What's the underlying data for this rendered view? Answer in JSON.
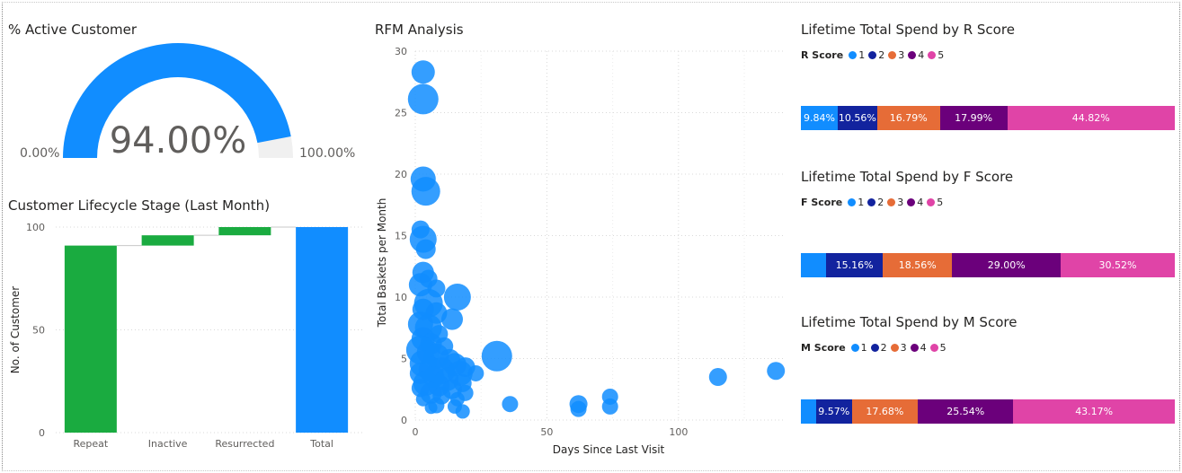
{
  "colors": {
    "blue": "#118DFF",
    "navy": "#12239E",
    "orange": "#E66C37",
    "purple": "#6B007B",
    "pink": "#E044A7",
    "green": "#1AAB40",
    "gauge_track": "#F0F0F0"
  },
  "gauge": {
    "title": "% Active Customer",
    "value_label": "94.00%",
    "min_label": "0.00%",
    "max_label": "100.00%",
    "value": 0.94
  },
  "chart_data": [
    {
      "type": "bar",
      "subtype": "waterfall",
      "title": "Customer Lifecycle Stage (Last Month)",
      "ylabel": "No. of Customer",
      "xlabel": "",
      "ylim": [
        0,
        100
      ],
      "yticks": [
        0,
        50,
        100
      ],
      "categories": [
        "Repeat",
        "Inactive",
        "Resurrected",
        "Total"
      ],
      "start": [
        0,
        91,
        96,
        0
      ],
      "end": [
        91,
        96,
        100,
        100
      ],
      "colors": [
        "#1AAB40",
        "#1AAB40",
        "#1AAB40",
        "#118DFF"
      ]
    },
    {
      "type": "scatter",
      "subtype": "bubble",
      "title": "RFM Analysis",
      "xlabel": "Days Since Last Visit",
      "ylabel": "Total Baskets per Month",
      "xlim": [
        0,
        140
      ],
      "ylim": [
        0,
        30
      ],
      "xticks": [
        0,
        50,
        100
      ],
      "yticks": [
        0,
        5,
        10,
        15,
        20,
        25,
        30
      ],
      "grid": true,
      "points": [
        {
          "x": 3,
          "y": 28.3,
          "r": 13
        },
        {
          "x": 3,
          "y": 26.1,
          "r": 17
        },
        {
          "x": 3,
          "y": 19.6,
          "r": 14
        },
        {
          "x": 4,
          "y": 18.6,
          "r": 16
        },
        {
          "x": 2,
          "y": 15.5,
          "r": 10
        },
        {
          "x": 3,
          "y": 14.7,
          "r": 15
        },
        {
          "x": 4,
          "y": 13.9,
          "r": 11
        },
        {
          "x": 3,
          "y": 12.0,
          "r": 12
        },
        {
          "x": 5,
          "y": 11.5,
          "r": 10
        },
        {
          "x": 2,
          "y": 11.0,
          "r": 13
        },
        {
          "x": 8,
          "y": 10.7,
          "r": 10
        },
        {
          "x": 16,
          "y": 10.0,
          "r": 15
        },
        {
          "x": 5,
          "y": 9.5,
          "r": 16
        },
        {
          "x": 3,
          "y": 9.0,
          "r": 12
        },
        {
          "x": 8,
          "y": 8.7,
          "r": 12
        },
        {
          "x": 14,
          "y": 8.2,
          "r": 12
        },
        {
          "x": 2,
          "y": 7.8,
          "r": 14
        },
        {
          "x": 5,
          "y": 7.5,
          "r": 15
        },
        {
          "x": 9,
          "y": 7.0,
          "r": 10
        },
        {
          "x": 3,
          "y": 6.6,
          "r": 13
        },
        {
          "x": 6,
          "y": 6.2,
          "r": 12
        },
        {
          "x": 11,
          "y": 6.0,
          "r": 10
        },
        {
          "x": 2,
          "y": 5.7,
          "r": 16
        },
        {
          "x": 5,
          "y": 5.5,
          "r": 13
        },
        {
          "x": 8,
          "y": 5.2,
          "r": 14
        },
        {
          "x": 31,
          "y": 5.2,
          "r": 17
        },
        {
          "x": 13,
          "y": 4.9,
          "r": 12
        },
        {
          "x": 3,
          "y": 4.6,
          "r": 15
        },
        {
          "x": 15,
          "y": 4.5,
          "r": 13
        },
        {
          "x": 19,
          "y": 4.3,
          "r": 11
        },
        {
          "x": 6,
          "y": 4.1,
          "r": 14
        },
        {
          "x": 10,
          "y": 4.0,
          "r": 15
        },
        {
          "x": 2,
          "y": 3.8,
          "r": 12
        },
        {
          "x": 17,
          "y": 3.8,
          "r": 14
        },
        {
          "x": 23,
          "y": 3.8,
          "r": 9
        },
        {
          "x": 7,
          "y": 3.5,
          "r": 12
        },
        {
          "x": 12,
          "y": 3.3,
          "r": 13
        },
        {
          "x": 4,
          "y": 3.0,
          "r": 14
        },
        {
          "x": 18,
          "y": 3.0,
          "r": 10
        },
        {
          "x": 9,
          "y": 2.8,
          "r": 12
        },
        {
          "x": 2,
          "y": 2.6,
          "r": 10
        },
        {
          "x": 14,
          "y": 2.5,
          "r": 11
        },
        {
          "x": 6,
          "y": 2.2,
          "r": 12
        },
        {
          "x": 19,
          "y": 2.2,
          "r": 9
        },
        {
          "x": 10,
          "y": 2.0,
          "r": 10
        },
        {
          "x": 3,
          "y": 1.7,
          "r": 8
        },
        {
          "x": 16,
          "y": 1.7,
          "r": 8
        },
        {
          "x": 8,
          "y": 1.2,
          "r": 9
        },
        {
          "x": 15,
          "y": 1.1,
          "r": 8
        },
        {
          "x": 6,
          "y": 1.0,
          "r": 7
        },
        {
          "x": 18,
          "y": 0.7,
          "r": 8
        },
        {
          "x": 36,
          "y": 1.3,
          "r": 9
        },
        {
          "x": 62,
          "y": 1.3,
          "r": 10
        },
        {
          "x": 62,
          "y": 0.9,
          "r": 9
        },
        {
          "x": 74,
          "y": 1.9,
          "r": 9
        },
        {
          "x": 74,
          "y": 1.1,
          "r": 9
        },
        {
          "x": 115,
          "y": 3.5,
          "r": 10
        },
        {
          "x": 137,
          "y": 4.0,
          "r": 10
        }
      ]
    },
    {
      "type": "bar",
      "subtype": "100% stacked",
      "title": "Lifetime Total Spend by R Score",
      "legend_title": "R Score",
      "series": [
        {
          "name": "1",
          "value": 9.84,
          "label": "9.84%"
        },
        {
          "name": "2",
          "value": 10.56,
          "label": "10.56%"
        },
        {
          "name": "3",
          "value": 16.79,
          "label": "16.79%"
        },
        {
          "name": "4",
          "value": 17.99,
          "label": "17.99%"
        },
        {
          "name": "5",
          "value": 44.82,
          "label": "44.82%"
        }
      ]
    },
    {
      "type": "bar",
      "subtype": "100% stacked",
      "title": "Lifetime Total Spend by F Score",
      "legend_title": "F Score",
      "series": [
        {
          "name": "1",
          "value": 6.76,
          "label": ""
        },
        {
          "name": "2",
          "value": 15.16,
          "label": "15.16%"
        },
        {
          "name": "3",
          "value": 18.56,
          "label": "18.56%"
        },
        {
          "name": "4",
          "value": 29.0,
          "label": "29.00%"
        },
        {
          "name": "5",
          "value": 30.52,
          "label": "30.52%"
        }
      ]
    },
    {
      "type": "bar",
      "subtype": "100% stacked",
      "title": "Lifetime Total Spend by M Score",
      "legend_title": "M Score",
      "series": [
        {
          "name": "1",
          "value": 4.04,
          "label": ""
        },
        {
          "name": "2",
          "value": 9.57,
          "label": "9.57%"
        },
        {
          "name": "3",
          "value": 17.68,
          "label": "17.68%"
        },
        {
          "name": "4",
          "value": 25.54,
          "label": "25.54%"
        },
        {
          "name": "5",
          "value": 43.17,
          "label": "43.17%"
        }
      ]
    }
  ]
}
